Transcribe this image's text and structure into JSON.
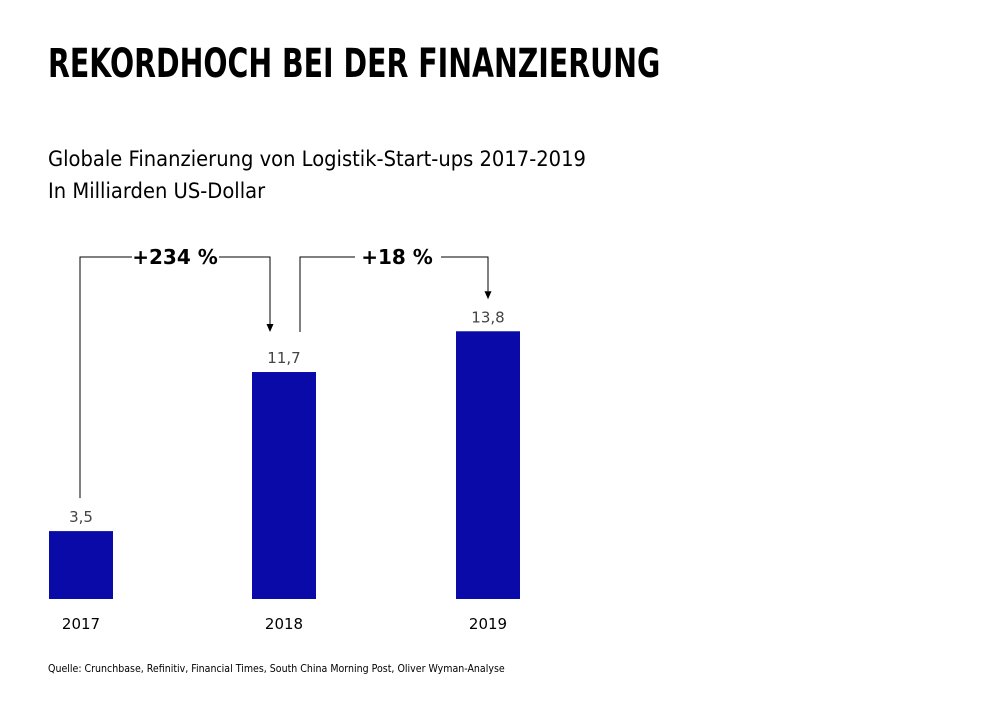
{
  "title": "REKORDHOCH BEI DER FINANZIERUNG",
  "subtitle_line1": "Globale Finanzierung von Logistik-Start-ups 2017-2019",
  "subtitle_line2": "In Milliarden US-Dollar",
  "source": "Quelle: Crunchbase, Refinitiv, Financial Times, South China Morning Post, Oliver Wyman-Analyse",
  "colors": {
    "bar": "#0a0aa8",
    "text": "#000000",
    "value_label": "#444444"
  },
  "chart_data": {
    "type": "bar",
    "categories": [
      "2017",
      "2018",
      "2019"
    ],
    "values": [
      3.5,
      11.7,
      13.8
    ],
    "value_labels": [
      "3,5",
      "11,7",
      "13,8"
    ],
    "ylim": [
      0,
      15
    ],
    "grid": false,
    "title": "Globale Finanzierung von Logistik-Start-ups 2017-2019",
    "ylabel": "In Milliarden US-Dollar",
    "annotations": [
      {
        "from": "2017",
        "to": "2018",
        "label": "+234 %"
      },
      {
        "from": "2018",
        "to": "2019",
        "label": "+18 %"
      }
    ]
  }
}
